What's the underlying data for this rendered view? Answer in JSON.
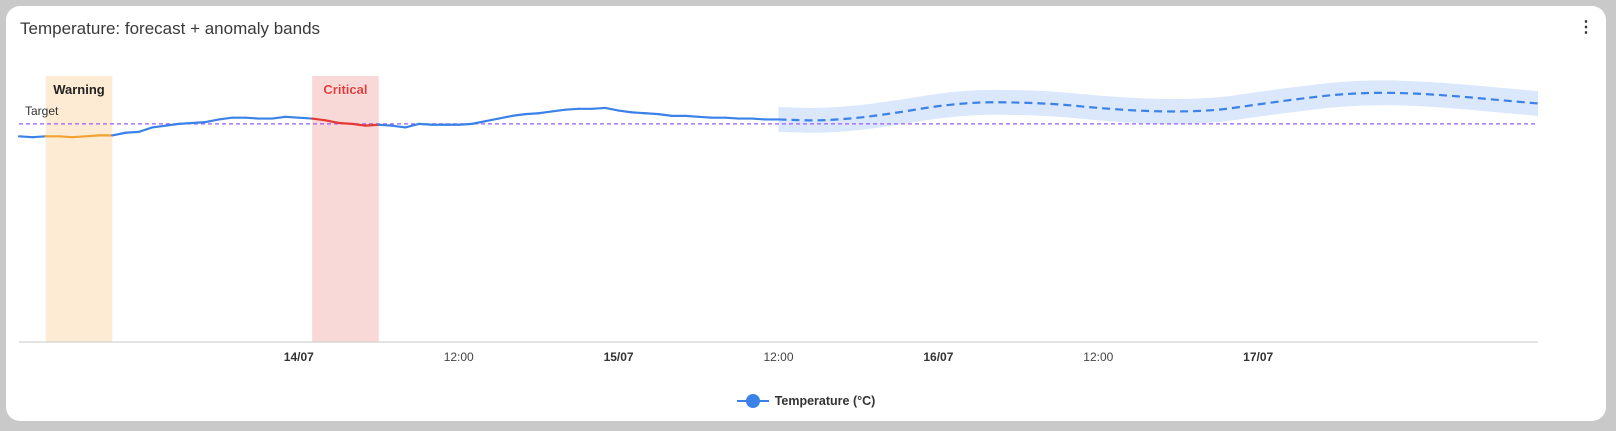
{
  "card": {
    "title": "Temperature: forecast + anomaly bands",
    "menu_icon": "more-vert-icon"
  },
  "colors": {
    "actual": "#3b82e8",
    "forecast": "#3b82e8",
    "forecast_band": "#dbe7fb",
    "warning_line": "#f2a230",
    "warning_band": "#fdebd3",
    "critical_line": "#e53935",
    "critical_band": "#f9d8d8",
    "critical_label": "#e53935",
    "target_line": "#9c5ef0"
  },
  "chart_data": {
    "type": "line",
    "title": "Temperature: forecast + anomaly bands",
    "x_axis": {
      "range": [
        "13/07 03:00",
        "17/07 21:00"
      ],
      "ticks": [
        {
          "label": "14/07",
          "major": true
        },
        {
          "label": "12:00",
          "major": false
        },
        {
          "label": "15/07",
          "major": true
        },
        {
          "label": "12:00",
          "major": false
        },
        {
          "label": "16/07",
          "major": true
        },
        {
          "label": "12:00",
          "major": false
        },
        {
          "label": "17/07",
          "major": true
        }
      ]
    },
    "y_axis": {
      "labels_shown": false,
      "range": [
        0,
        30
      ]
    },
    "grid": false,
    "legend": {
      "position": "bottom",
      "entries": [
        "Temperature (°C)"
      ]
    },
    "series": [
      {
        "name": "Temperature (°C)",
        "kind": "actual",
        "x": [
          "13/07 03:00",
          "13/07 04:00",
          "13/07 05:00",
          "13/07 06:00",
          "13/07 07:00",
          "13/07 08:00",
          "13/07 09:00",
          "13/07 10:00",
          "13/07 11:00",
          "13/07 12:00",
          "13/07 13:00",
          "13/07 14:00",
          "13/07 15:00",
          "13/07 16:00",
          "13/07 17:00",
          "13/07 18:00",
          "13/07 19:00",
          "13/07 20:00",
          "13/07 21:00",
          "13/07 22:00",
          "13/07 23:00",
          "14/07 00:00",
          "14/07 01:00",
          "14/07 02:00",
          "14/07 03:00",
          "14/07 04:00",
          "14/07 05:00",
          "14/07 06:00",
          "14/07 07:00",
          "14/07 08:00",
          "14/07 09:00",
          "14/07 10:00",
          "14/07 11:00",
          "14/07 12:00",
          "14/07 13:00",
          "14/07 14:00",
          "14/07 15:00",
          "14/07 16:00",
          "14/07 17:00",
          "14/07 18:00",
          "14/07 19:00",
          "14/07 20:00",
          "14/07 21:00",
          "14/07 22:00",
          "14/07 23:00",
          "15/07 00:00",
          "15/07 01:00",
          "15/07 02:00",
          "15/07 03:00",
          "15/07 04:00",
          "15/07 05:00",
          "15/07 06:00",
          "15/07 07:00",
          "15/07 08:00",
          "15/07 09:00",
          "15/07 10:00",
          "15/07 11:00",
          "15/07 12:00"
        ],
        "values": [
          23.2,
          23.1,
          23.2,
          23.2,
          23.1,
          23.2,
          23.3,
          23.3,
          23.6,
          23.7,
          24.2,
          24.4,
          24.6,
          24.7,
          24.8,
          25.1,
          25.3,
          25.3,
          25.2,
          25.2,
          25.4,
          25.3,
          25.2,
          25.0,
          24.7,
          24.6,
          24.4,
          24.5,
          24.4,
          24.2,
          24.6,
          24.5,
          24.5,
          24.5,
          24.6,
          24.9,
          25.2,
          25.5,
          25.7,
          25.8,
          26.0,
          26.2,
          26.3,
          26.3,
          26.4,
          26.1,
          25.9,
          25.8,
          25.7,
          25.5,
          25.5,
          25.4,
          25.3,
          25.3,
          25.2,
          25.2,
          25.1,
          25.1
        ],
        "line": "solid"
      },
      {
        "name": "Forecast",
        "kind": "forecast",
        "x": [
          "15/07 12:00",
          "15/07 15:00",
          "15/07 18:00",
          "15/07 21:00",
          "16/07 00:00",
          "16/07 03:00",
          "16/07 06:00",
          "16/07 09:00",
          "16/07 12:00",
          "16/07 15:00",
          "16/07 18:00",
          "16/07 21:00",
          "17/07 00:00",
          "17/07 03:00",
          "17/07 06:00",
          "17/07 09:00",
          "17/07 12:00",
          "17/07 15:00",
          "17/07 18:00",
          "17/07 21:00"
        ],
        "values": [
          25.1,
          25.0,
          25.3,
          25.9,
          26.6,
          27.0,
          27.0,
          26.8,
          26.4,
          26.1,
          26.0,
          26.2,
          26.8,
          27.4,
          27.9,
          28.1,
          28.0,
          27.7,
          27.3,
          26.9
        ],
        "band_halfwidth": 1.4,
        "line": "dashed"
      }
    ],
    "target": {
      "label": "Target",
      "value": 24.6
    },
    "bands": [
      {
        "label": "Warning",
        "start": "13/07 05:00",
        "end": "13/07 10:00"
      },
      {
        "label": "Critical",
        "start": "14/07 01:00",
        "end": "14/07 06:00"
      }
    ]
  }
}
